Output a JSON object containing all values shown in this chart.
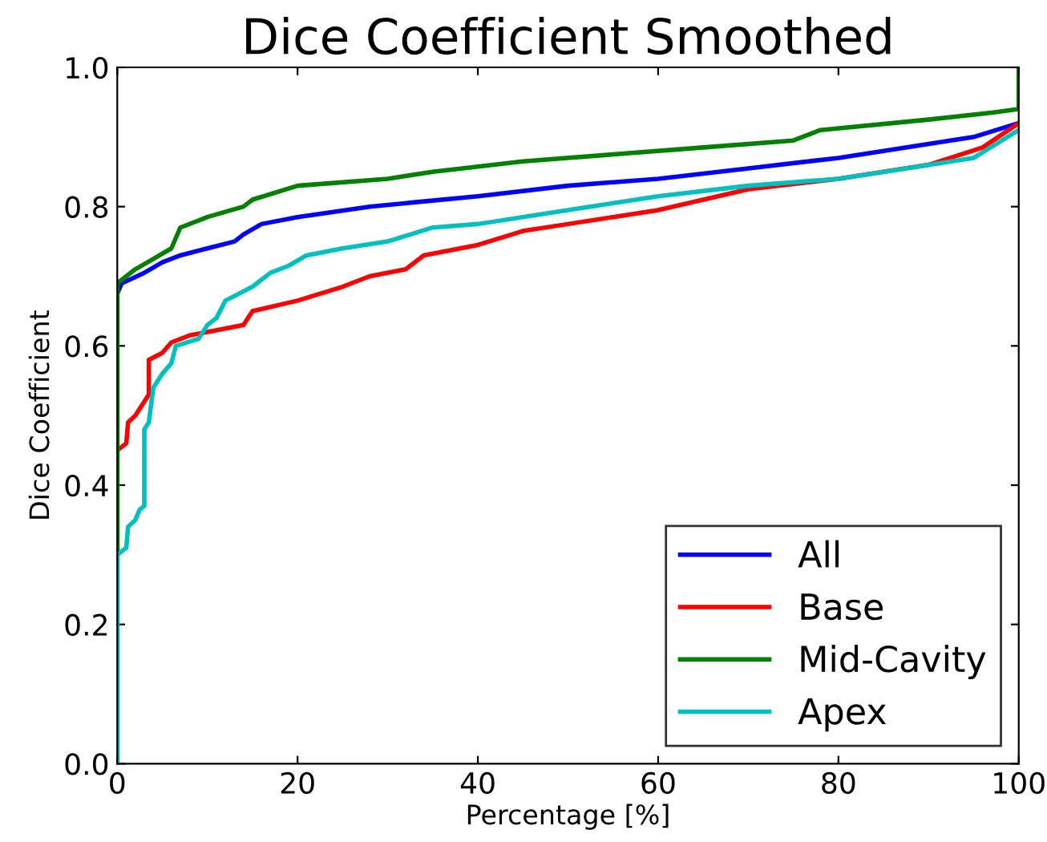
{
  "chart_data": {
    "type": "line",
    "title": "Dice Coefficient Smoothed",
    "xlabel": "Percentage [%]",
    "ylabel": "Dice Coefficient",
    "xlim": [
      0,
      100
    ],
    "ylim": [
      0,
      1.0
    ],
    "xticks": [
      0,
      20,
      40,
      60,
      80,
      100
    ],
    "yticks": [
      {
        "value": 0,
        "label": "0.0"
      },
      {
        "value": 0.2,
        "label": "0.2"
      },
      {
        "value": 0.4,
        "label": "0.4"
      },
      {
        "value": 0.6,
        "label": "0.6"
      },
      {
        "value": 0.8,
        "label": "0.8"
      },
      {
        "value": 1.0,
        "label": "1.0"
      }
    ],
    "grid": false,
    "legend": "bottom right",
    "line_style": "solid",
    "series": [
      {
        "name": "All",
        "color": "#0000ff",
        "x": [
          0,
          0,
          0.5,
          3,
          5,
          7,
          10,
          13,
          14,
          16,
          20,
          28,
          40,
          50,
          60,
          70,
          80,
          90,
          95,
          100
        ],
        "values": [
          0,
          0.675,
          0.69,
          0.705,
          0.72,
          0.73,
          0.74,
          0.75,
          0.76,
          0.775,
          0.785,
          0.8,
          0.815,
          0.83,
          0.84,
          0.855,
          0.87,
          0.89,
          0.9,
          0.92
        ]
      },
      {
        "name": "Base",
        "color": "#ff0000",
        "x": [
          0,
          0,
          1,
          1.2,
          2,
          2.5,
          3,
          3.5,
          3.5,
          5,
          6,
          8,
          10,
          14,
          15,
          20,
          25,
          28,
          32,
          34,
          40,
          45,
          50,
          55,
          60,
          65,
          70,
          80,
          90,
          96,
          100
        ],
        "values": [
          0,
          0.45,
          0.46,
          0.49,
          0.5,
          0.51,
          0.52,
          0.53,
          0.58,
          0.59,
          0.605,
          0.615,
          0.62,
          0.63,
          0.65,
          0.665,
          0.685,
          0.7,
          0.71,
          0.73,
          0.745,
          0.765,
          0.775,
          0.785,
          0.795,
          0.81,
          0.825,
          0.84,
          0.86,
          0.885,
          0.92
        ]
      },
      {
        "name": "Mid-Cavity",
        "color": "#008000",
        "x": [
          0,
          0,
          2,
          4,
          6,
          6.5,
          7,
          10,
          14,
          15,
          20,
          30,
          35,
          45,
          55,
          65,
          75,
          78,
          90,
          97,
          100,
          100
        ],
        "values": [
          0,
          0.69,
          0.71,
          0.725,
          0.74,
          0.755,
          0.77,
          0.785,
          0.8,
          0.81,
          0.83,
          0.84,
          0.85,
          0.865,
          0.875,
          0.885,
          0.895,
          0.91,
          0.925,
          0.935,
          0.94,
          1.0
        ]
      },
      {
        "name": "Apex",
        "color": "#00bfbf",
        "x": [
          0,
          0,
          1,
          1.2,
          2,
          2.5,
          3,
          3,
          3.5,
          4,
          5,
          6,
          6.5,
          9,
          10,
          11,
          12,
          15,
          17,
          19,
          21,
          25,
          30,
          35,
          40,
          50,
          60,
          70,
          80,
          95,
          100
        ],
        "values": [
          0,
          0.3,
          0.31,
          0.34,
          0.35,
          0.365,
          0.37,
          0.48,
          0.49,
          0.54,
          0.56,
          0.575,
          0.6,
          0.61,
          0.63,
          0.64,
          0.665,
          0.685,
          0.705,
          0.715,
          0.73,
          0.74,
          0.75,
          0.77,
          0.775,
          0.795,
          0.815,
          0.83,
          0.84,
          0.87,
          0.91
        ]
      }
    ]
  }
}
